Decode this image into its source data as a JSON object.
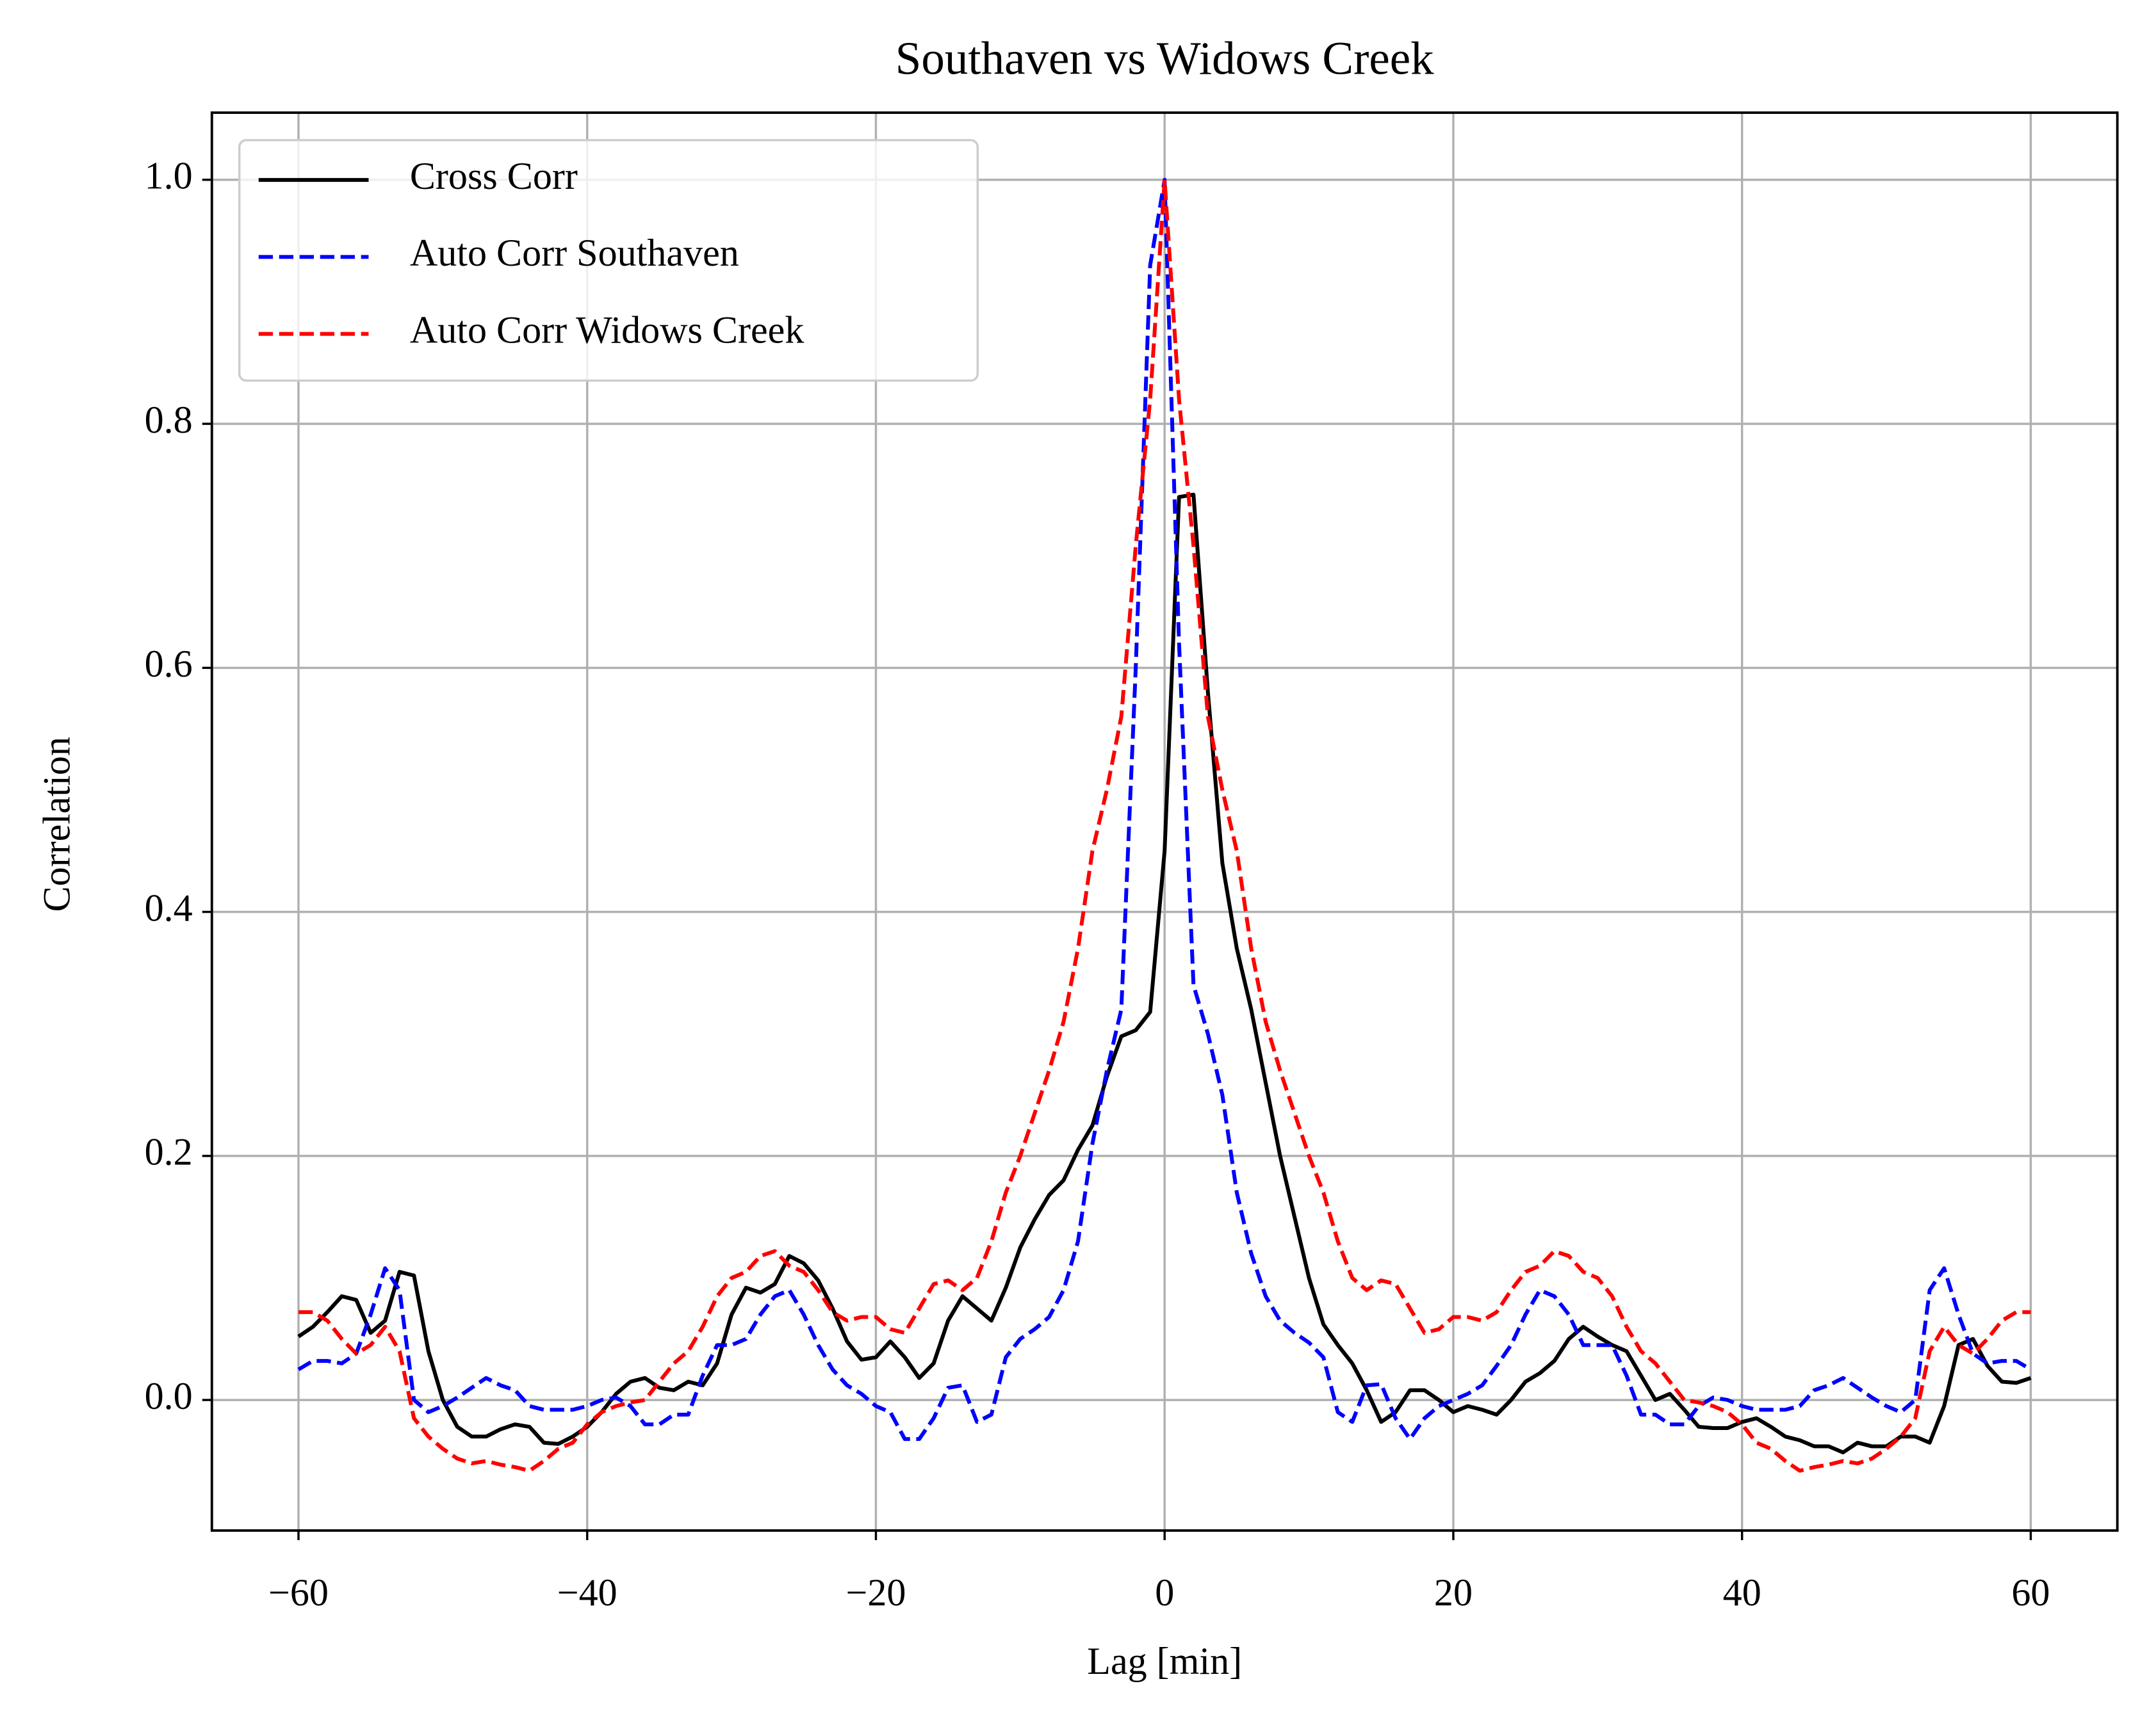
{
  "chart_data": {
    "type": "line",
    "title": "Southaven vs Widows Creek",
    "xlabel": "Lag [min]",
    "ylabel": "Correlation",
    "x": [
      -60,
      -59,
      -58,
      -57,
      -56,
      -55,
      -54,
      -53,
      -52,
      -51,
      -50,
      -49,
      -48,
      -47,
      -46,
      -45,
      -44,
      -43,
      -42,
      -41,
      -40,
      -39,
      -38,
      -37,
      -36,
      -35,
      -34,
      -33,
      -32,
      -31,
      -30,
      -29,
      -28,
      -27,
      -26,
      -25,
      -24,
      -23,
      -22,
      -21,
      -20,
      -19,
      -18,
      -17,
      -16,
      -15,
      -14,
      -13,
      -12,
      -11,
      -10,
      -9,
      -8,
      -7,
      -6,
      -5,
      -4,
      -3,
      -2,
      -1,
      0,
      1,
      2,
      3,
      4,
      5,
      6,
      7,
      8,
      9,
      10,
      11,
      12,
      13,
      14,
      15,
      16,
      17,
      18,
      19,
      20,
      21,
      22,
      23,
      24,
      25,
      26,
      27,
      28,
      29,
      30,
      31,
      32,
      33,
      34,
      35,
      36,
      37,
      38,
      39,
      40,
      41,
      42,
      43,
      44,
      45,
      46,
      47,
      48,
      49,
      50,
      51,
      52,
      53,
      54,
      55,
      56,
      57,
      58,
      59,
      60
    ],
    "series": [
      {
        "name": "Cross Corr",
        "color": "#000000",
        "dash": false,
        "values": [
          0.052,
          0.06,
          0.072,
          0.085,
          0.082,
          0.055,
          0.065,
          0.105,
          0.102,
          0.04,
          0.0,
          -0.022,
          -0.03,
          -0.03,
          -0.024,
          -0.02,
          -0.022,
          -0.035,
          -0.036,
          -0.03,
          -0.022,
          -0.01,
          0.005,
          0.015,
          0.018,
          0.01,
          0.008,
          0.015,
          0.012,
          0.03,
          0.07,
          0.092,
          0.088,
          0.095,
          0.118,
          0.112,
          0.098,
          0.075,
          0.048,
          0.033,
          0.035,
          0.048,
          0.035,
          0.018,
          0.03,
          0.065,
          0.085,
          0.075,
          0.065,
          0.092,
          0.125,
          0.148,
          0.168,
          0.18,
          0.205,
          0.225,
          0.265,
          0.298,
          0.303,
          0.318,
          0.45,
          0.74,
          0.742,
          0.58,
          0.44,
          0.37,
          0.32,
          0.26,
          0.2,
          0.15,
          0.1,
          0.062,
          0.045,
          0.03,
          0.008,
          -0.018,
          -0.01,
          0.008,
          0.008,
          0.0,
          -0.01,
          -0.005,
          -0.008,
          -0.012,
          0.0,
          0.015,
          0.022,
          0.032,
          0.05,
          0.06,
          0.052,
          0.045,
          0.04,
          0.02,
          0.0,
          0.005,
          -0.008,
          -0.022,
          -0.023,
          -0.023,
          -0.018,
          -0.015,
          -0.022,
          -0.03,
          -0.033,
          -0.038,
          -0.038,
          -0.043,
          -0.035,
          -0.038,
          -0.038,
          -0.03,
          -0.03,
          -0.035,
          -0.005,
          0.045,
          0.05,
          0.028,
          0.015,
          0.014,
          0.018
        ]
      },
      {
        "name": "Auto Corr Southaven",
        "color": "#0000ff",
        "dash": true,
        "values": [
          0.025,
          0.032,
          0.032,
          0.03,
          0.038,
          0.07,
          0.108,
          0.09,
          0.0,
          -0.01,
          -0.005,
          0.002,
          0.01,
          0.018,
          0.012,
          0.008,
          -0.005,
          -0.008,
          -0.008,
          -0.008,
          -0.005,
          0.0,
          0.002,
          -0.005,
          -0.02,
          -0.02,
          -0.012,
          -0.012,
          0.02,
          0.045,
          0.045,
          0.05,
          0.07,
          0.085,
          0.09,
          0.07,
          0.045,
          0.025,
          0.012,
          0.005,
          -0.005,
          -0.01,
          -0.032,
          -0.032,
          -0.015,
          0.01,
          0.012,
          -0.018,
          -0.012,
          0.035,
          0.05,
          0.058,
          0.068,
          0.09,
          0.13,
          0.21,
          0.27,
          0.32,
          0.6,
          0.93,
          1.0,
          0.62,
          0.34,
          0.3,
          0.25,
          0.17,
          0.12,
          0.085,
          0.065,
          0.055,
          0.047,
          0.035,
          -0.01,
          -0.018,
          0.012,
          0.013,
          -0.015,
          -0.032,
          -0.015,
          -0.005,
          0.0,
          0.005,
          0.012,
          0.028,
          0.045,
          0.07,
          0.09,
          0.085,
          0.07,
          0.045,
          0.045,
          0.045,
          0.02,
          -0.012,
          -0.012,
          -0.02,
          -0.02,
          -0.005,
          0.002,
          0.0,
          -0.005,
          -0.008,
          -0.008,
          -0.008,
          -0.005,
          0.008,
          0.012,
          0.018,
          0.01,
          0.002,
          -0.005,
          -0.01,
          0.0,
          0.09,
          0.108,
          0.07,
          0.038,
          0.03,
          0.032,
          0.032,
          0.025
        ]
      },
      {
        "name": "Auto Corr Widows Creek",
        "color": "#ff0000",
        "dash": true,
        "values": [
          0.072,
          0.072,
          0.065,
          0.05,
          0.038,
          0.045,
          0.06,
          0.04,
          -0.015,
          -0.03,
          -0.04,
          -0.048,
          -0.052,
          -0.05,
          -0.053,
          -0.055,
          -0.058,
          -0.05,
          -0.04,
          -0.035,
          -0.02,
          -0.01,
          -0.005,
          -0.002,
          0.0,
          0.015,
          0.03,
          0.04,
          0.06,
          0.085,
          0.1,
          0.105,
          0.118,
          0.122,
          0.11,
          0.105,
          0.09,
          0.072,
          0.065,
          0.068,
          0.068,
          0.058,
          0.055,
          0.075,
          0.095,
          0.098,
          0.09,
          0.1,
          0.13,
          0.17,
          0.2,
          0.235,
          0.27,
          0.31,
          0.37,
          0.45,
          0.5,
          0.56,
          0.7,
          0.82,
          1.0,
          0.82,
          0.7,
          0.56,
          0.5,
          0.45,
          0.37,
          0.31,
          0.27,
          0.235,
          0.2,
          0.17,
          0.13,
          0.1,
          0.09,
          0.098,
          0.095,
          0.075,
          0.055,
          0.058,
          0.068,
          0.068,
          0.065,
          0.072,
          0.09,
          0.105,
          0.11,
          0.122,
          0.118,
          0.105,
          0.1,
          0.085,
          0.06,
          0.04,
          0.03,
          0.015,
          0.0,
          -0.002,
          -0.005,
          -0.01,
          -0.02,
          -0.035,
          -0.04,
          -0.05,
          -0.058,
          -0.055,
          -0.053,
          -0.05,
          -0.052,
          -0.048,
          -0.04,
          -0.03,
          -0.015,
          0.04,
          0.06,
          0.045,
          0.038,
          0.05,
          0.065,
          0.072,
          0.072
        ]
      }
    ],
    "xlim": [
      -66,
      66
    ],
    "ylim": [
      -0.107,
      1.055
    ],
    "xticks": [
      {
        "value": -60,
        "label": "−60"
      },
      {
        "value": -40,
        "label": "−40"
      },
      {
        "value": -20,
        "label": "−20"
      },
      0,
      20,
      40,
      60
    ],
    "yticks": [
      {
        "value": 0,
        "label": "0.0"
      },
      0.2,
      0.4,
      0.6,
      0.8,
      {
        "value": 1,
        "label": "1.0"
      }
    ],
    "grid": true,
    "legend": "upper left"
  }
}
